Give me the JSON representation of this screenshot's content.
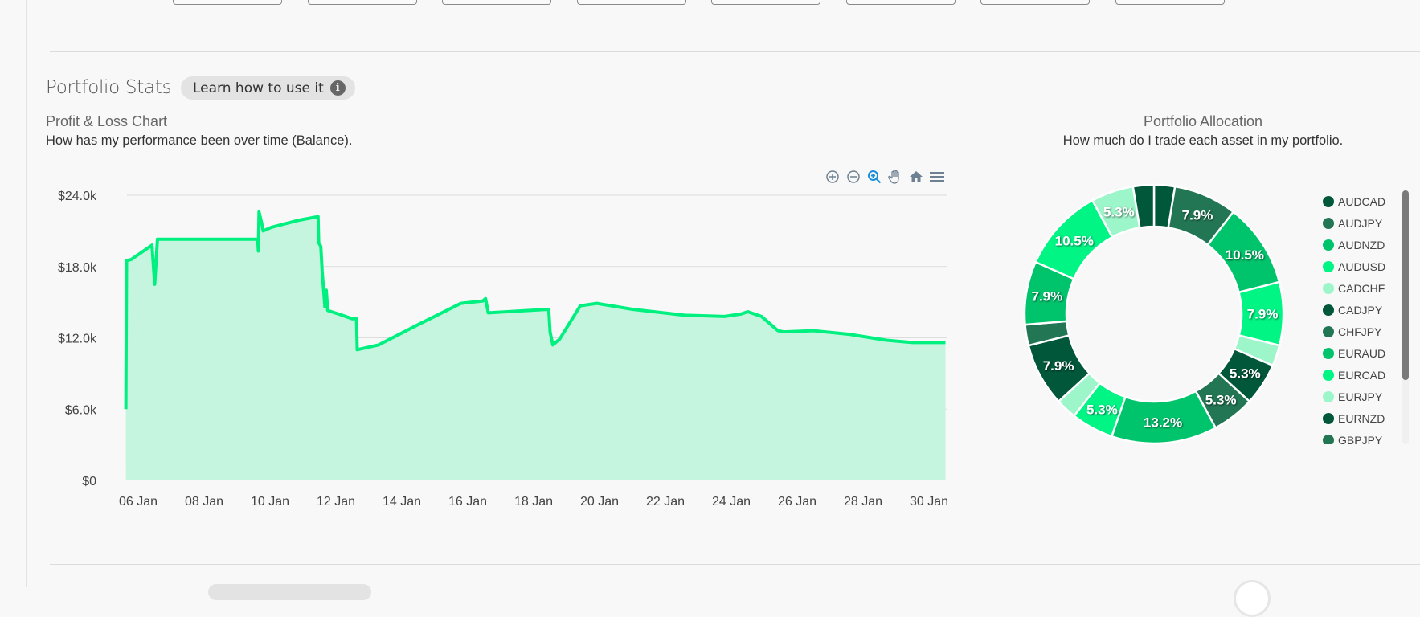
{
  "top_buttons": [
    "",
    "",
    "",
    "",
    "",
    "",
    "",
    ""
  ],
  "portfolio_stats": {
    "title": "Portfolio Stats",
    "learn_button": "Learn how to use it",
    "learn_icon": "info-icon"
  },
  "pnl": {
    "title": "Profit & Loss Chart",
    "subtitle": "How has my performance been over time (Balance).",
    "toolbar": [
      "zoom-in-icon",
      "zoom-out-icon",
      "selection-zoom-icon",
      "pan-hand-icon",
      "home-reset-icon",
      "menu-icon"
    ]
  },
  "allocation": {
    "title": "Portfolio Allocation",
    "subtitle": "How much do I trade each asset in my portfolio."
  },
  "colors": {
    "line": "#00f07f",
    "area": "#c5f5df",
    "grid": "#dddddd",
    "palette": [
      "#00573a",
      "#227653",
      "#00c46c",
      "#00f585",
      "#9df5ca"
    ],
    "toolbar_active": "#1a8fd8"
  },
  "chart_data": [
    {
      "type": "area",
      "title": "Profit & Loss Chart",
      "ylim": [
        0,
        24000
      ],
      "yticks": [
        "$0",
        "$6.0k",
        "$12.0k",
        "$18.0k",
        "$24.0k"
      ],
      "ytick_values": [
        0,
        6000,
        12000,
        18000,
        24000
      ],
      "xticks": [
        "06 Jan",
        "08 Jan",
        "10 Jan",
        "12 Jan",
        "14 Jan",
        "16 Jan",
        "18 Jan",
        "20 Jan",
        "22 Jan",
        "24 Jan",
        "26 Jan",
        "28 Jan",
        "30 Jan"
      ],
      "grid": true,
      "series": [
        {
          "points": [
            [
              "05 Jan 15:00",
              6000
            ],
            [
              "05 Jan 15:30",
              18500
            ],
            [
              "05 Jan 19:00",
              18600
            ],
            [
              "06 Jan 10:00",
              19800
            ],
            [
              "06 Jan 12:00",
              16500
            ],
            [
              "06 Jan 14:00",
              20300
            ],
            [
              "09 Jan 15:00",
              20300
            ],
            [
              "09 Jan 15:30",
              19300
            ],
            [
              "09 Jan 16:00",
              22600
            ],
            [
              "09 Jan 18:00",
              21600
            ],
            [
              "09 Jan 19:00",
              21000
            ],
            [
              "10 Jan 01:00",
              21300
            ],
            [
              "10 Jan 21:00",
              21900
            ],
            [
              "11 Jan 11:00",
              22200
            ],
            [
              "11 Jan 11:30",
              20000
            ],
            [
              "11 Jan 13:00",
              19700
            ],
            [
              "11 Jan 14:00",
              17600
            ],
            [
              "11 Jan 16:00",
              14600
            ],
            [
              "11 Jan 17:00",
              16000
            ],
            [
              "11 Jan 18:00",
              14300
            ],
            [
              "12 Jan 02:00",
              14000
            ],
            [
              "12 Jan 12:00",
              13600
            ],
            [
              "12 Jan 15:00",
              13600
            ],
            [
              "12 Jan 15:30",
              11000
            ],
            [
              "13 Jan 07:00",
              11400
            ],
            [
              "14 Jan 10:00",
              13000
            ],
            [
              "15 Jan 19:00",
              14900
            ],
            [
              "16 Jan 11:00",
              15100
            ],
            [
              "16 Jan 13:00",
              15300
            ],
            [
              "16 Jan 15:00",
              14100
            ],
            [
              "18 Jan 11:00",
              14400
            ],
            [
              "18 Jan 12:00",
              12500
            ],
            [
              "18 Jan 14:00",
              11400
            ],
            [
              "18 Jan 19:00",
              11900
            ],
            [
              "19 Jan 10:00",
              14700
            ],
            [
              "19 Jan 22:00",
              14900
            ],
            [
              "21 Jan 00:00",
              14400
            ],
            [
              "22 Jan 14:00",
              13900
            ],
            [
              "23 Jan 19:00",
              13800
            ],
            [
              "24 Jan 07:00",
              14000
            ],
            [
              "24 Jan 12:00",
              14200
            ],
            [
              "24 Jan 22:00",
              13800
            ],
            [
              "25 Jan 10:00",
              12600
            ],
            [
              "25 Jan 14:00",
              12500
            ],
            [
              "26 Jan 12:00",
              12600
            ],
            [
              "27 Jan 14:00",
              12300
            ],
            [
              "28 Jan 17:00",
              11800
            ],
            [
              "29 Jan 12:00",
              11600
            ],
            [
              "30 Jan 12:00",
              11600
            ]
          ]
        }
      ]
    },
    {
      "type": "pie",
      "title": "Portfolio Allocation",
      "legend_position": "right",
      "slices": [
        {
          "name": "AUDCAD",
          "value": 2.6,
          "label": ""
        },
        {
          "name": "AUDJPY",
          "value": 7.9,
          "label": "7.9%"
        },
        {
          "name": "AUDNZD",
          "value": 10.5,
          "label": "10.5%"
        },
        {
          "name": "AUDUSD",
          "value": 7.9,
          "label": "7.9%"
        },
        {
          "name": "CADCHF",
          "value": 2.6,
          "label": ""
        },
        {
          "name": "CADJPY",
          "value": 5.3,
          "label": "5.3%"
        },
        {
          "name": "CHFJPY",
          "value": 5.3,
          "label": "5.3%"
        },
        {
          "name": "EURAUD",
          "value": 13.2,
          "label": "13.2%"
        },
        {
          "name": "EURCAD",
          "value": 5.3,
          "label": "5.3%"
        },
        {
          "name": "EURJPY",
          "value": 2.6,
          "label": ""
        },
        {
          "name": "EURNZD",
          "value": 7.9,
          "label": "7.9%"
        },
        {
          "name": "GBPJPY",
          "value": 2.6,
          "label": ""
        },
        {
          "name": "",
          "value": 7.9,
          "label": "7.9%"
        },
        {
          "name": "",
          "value": 10.5,
          "label": "10.5%"
        },
        {
          "name": "",
          "value": 5.3,
          "label": "5.3%"
        },
        {
          "name": "",
          "value": 2.6,
          "label": ""
        }
      ]
    }
  ]
}
